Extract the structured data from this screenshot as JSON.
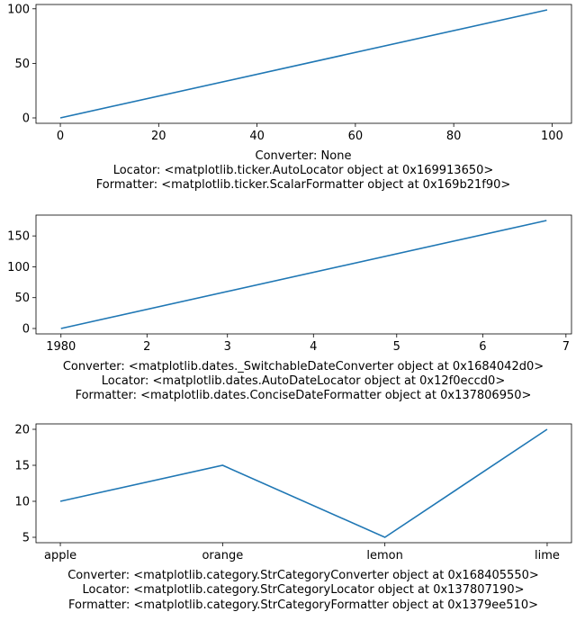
{
  "chart_data": [
    {
      "type": "line",
      "x": [
        0,
        99
      ],
      "y": [
        0,
        99
      ],
      "xlim": [
        -4.95,
        103.95
      ],
      "ylim": [
        -4.95,
        103.95
      ],
      "xticks": [
        0,
        20,
        40,
        60,
        80,
        100
      ],
      "xtick_labels": [
        "0",
        "20",
        "40",
        "60",
        "80",
        "100"
      ],
      "yticks": [
        0,
        50,
        100
      ],
      "ytick_labels": [
        "0",
        "50",
        "100"
      ],
      "line_color": "#1f77b4",
      "grid": false,
      "caption": [
        "Converter: None",
        "Locator: <matplotlib.ticker.AutoLocator object at 0x169913650>",
        "Formatter: <matplotlib.ticker.ScalarFormatter object at 0x169b21f90>"
      ]
    },
    {
      "type": "line",
      "x": [
        "1980-01-01",
        "1980-06-24"
      ],
      "y": [
        0,
        175
      ],
      "xlim": [
        "1979-12-23",
        "1980-07-03"
      ],
      "ylim": [
        -8.75,
        183.75
      ],
      "xticks": [
        "1980-01-01",
        "1980-02-01",
        "1980-03-01",
        "1980-04-01",
        "1980-05-01",
        "1980-06-01",
        "1980-07-01"
      ],
      "xtick_labels": [
        "1980",
        "2",
        "3",
        "4",
        "5",
        "6",
        "7"
      ],
      "yticks": [
        0,
        50,
        100,
        150
      ],
      "ytick_labels": [
        "0",
        "50",
        "100",
        "150"
      ],
      "line_color": "#1f77b4",
      "grid": false,
      "caption": [
        "Converter: <matplotlib.dates._SwitchableDateConverter object at 0x1684042d0>",
        "Locator: <matplotlib.dates.AutoDateLocator object at 0x12f0eccd0>",
        "Formatter: <matplotlib.dates.ConciseDateFormatter object at 0x137806950>"
      ]
    },
    {
      "type": "line",
      "categories": [
        "apple",
        "orange",
        "lemon",
        "lime"
      ],
      "values": [
        10,
        15,
        5,
        20
      ],
      "ylim": [
        4.25,
        20.75
      ],
      "yticks": [
        5,
        10,
        15,
        20
      ],
      "ytick_labels": [
        "5",
        "10",
        "15",
        "20"
      ],
      "line_color": "#1f77b4",
      "grid": false,
      "caption": [
        "Converter: <matplotlib.category.StrCategoryConverter object at 0x168405550>",
        "Locator: <matplotlib.category.StrCategoryLocator object at 0x137807190>",
        "Formatter: <matplotlib.category.StrCategoryFormatter object at 0x1379ee510>"
      ]
    }
  ]
}
